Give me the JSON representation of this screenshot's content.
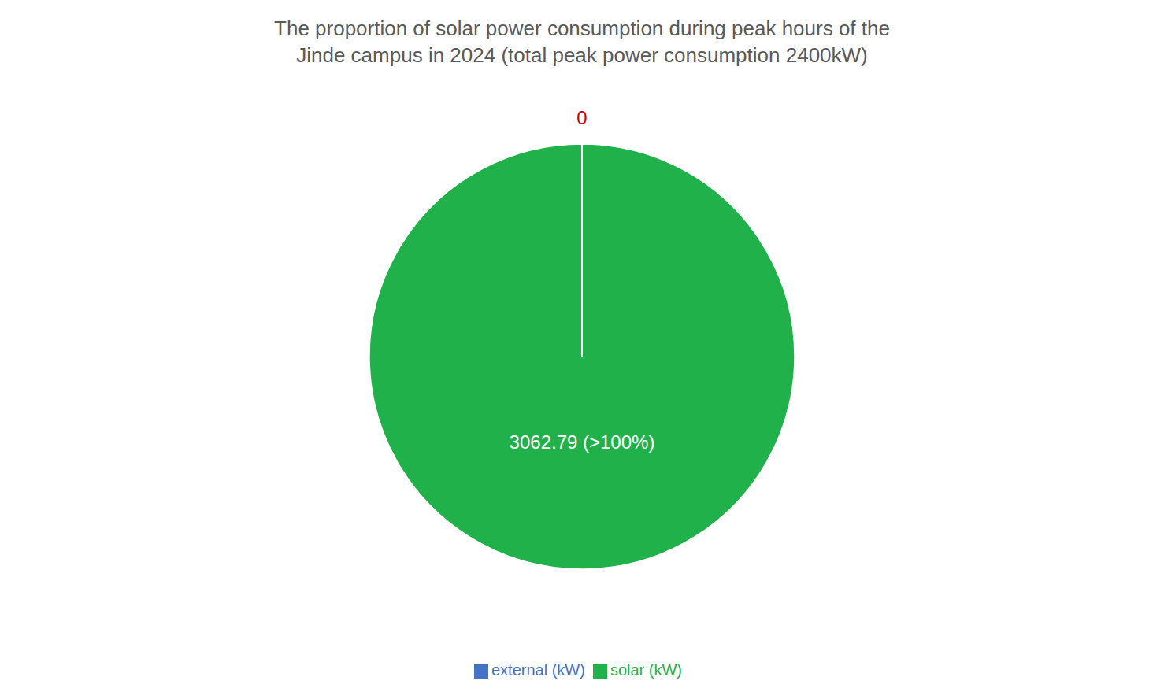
{
  "chart_data": {
    "type": "pie",
    "title": "The proportion of solar power consumption during peak hours of the\nJinde campus in 2024 (total peak power consumption 2400kW)",
    "categories": [
      "solar (kW)",
      "external (kW)"
    ],
    "values": [
      3062.79,
      0.001
    ],
    "value_labels": [
      "3062.79 (>100%)",
      "0"
    ],
    "colors": [
      "#21b14b",
      "#4472c4"
    ],
    "data_labels": true,
    "legend": "bottom"
  }
}
